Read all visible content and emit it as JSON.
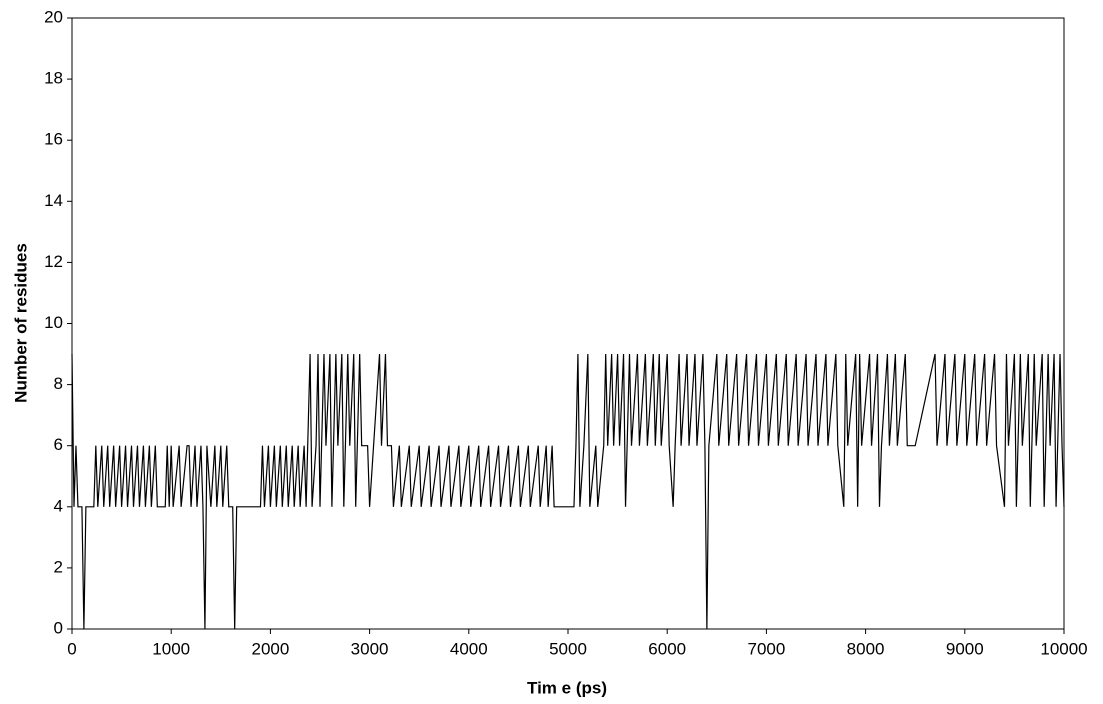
{
  "chart_data": {
    "type": "line",
    "x_label": "Tim e (ps)",
    "y_label": "Number of residues",
    "x": [
      0,
      20,
      40,
      60,
      100,
      120,
      140,
      220,
      240,
      260,
      300,
      320,
      360,
      380,
      420,
      440,
      480,
      500,
      540,
      560,
      600,
      620,
      660,
      680,
      720,
      740,
      780,
      800,
      840,
      860,
      940,
      960,
      980,
      1000,
      1020,
      1080,
      1100,
      1160,
      1180,
      1200,
      1240,
      1260,
      1300,
      1320,
      1340,
      1360,
      1400,
      1440,
      1460,
      1500,
      1520,
      1560,
      1580,
      1620,
      1640,
      1660,
      1900,
      1920,
      1940,
      1980,
      2000,
      2040,
      2060,
      2100,
      2120,
      2160,
      2180,
      2220,
      2240,
      2280,
      2300,
      2340,
      2360,
      2400,
      2420,
      2460,
      2480,
      2500,
      2540,
      2560,
      2600,
      2620,
      2660,
      2680,
      2720,
      2740,
      2780,
      2800,
      2840,
      2860,
      2900,
      2920,
      2980,
      3000,
      3040,
      3100,
      3120,
      3160,
      3180,
      3220,
      3240,
      3300,
      3320,
      3400,
      3420,
      3500,
      3520,
      3600,
      3620,
      3700,
      3720,
      3800,
      3820,
      3900,
      3920,
      4000,
      4020,
      4100,
      4120,
      4200,
      4220,
      4300,
      4320,
      4400,
      4420,
      4500,
      4520,
      4600,
      4620,
      4700,
      4720,
      4780,
      4800,
      4840,
      4860,
      5060,
      5080,
      5100,
      5120,
      5160,
      5200,
      5220,
      5280,
      5300,
      5360,
      5380,
      5400,
      5440,
      5460,
      5500,
      5520,
      5560,
      5580,
      5620,
      5640,
      5700,
      5720,
      5780,
      5800,
      5860,
      5880,
      5920,
      5940,
      6000,
      6020,
      6060,
      6080,
      6120,
      6140,
      6200,
      6220,
      6280,
      6300,
      6360,
      6380,
      6400,
      6420,
      6500,
      6520,
      6600,
      6620,
      6700,
      6720,
      6800,
      6820,
      6900,
      6920,
      7000,
      7020,
      7100,
      7120,
      7200,
      7220,
      7300,
      7320,
      7400,
      7420,
      7500,
      7520,
      7600,
      7620,
      7700,
      7720,
      7780,
      7800,
      7820,
      7900,
      7920,
      7940,
      7960,
      8040,
      8060,
      8120,
      8140,
      8160,
      8220,
      8240,
      8300,
      8320,
      8400,
      8420,
      8500,
      8700,
      8720,
      8800,
      8820,
      8900,
      8920,
      9000,
      9020,
      9100,
      9120,
      9200,
      9220,
      9300,
      9320,
      9400,
      9420,
      9440,
      9500,
      9520,
      9560,
      9580,
      9640,
      9660,
      9700,
      9720,
      9780,
      9800,
      9840,
      9860,
      9900,
      9920,
      9960,
      9980,
      10000
    ],
    "series": [
      {
        "color": "#000000",
        "values": [
          9,
          4,
          6,
          4,
          4,
          0,
          4,
          4,
          6,
          4,
          6,
          4,
          6,
          4,
          6,
          4,
          6,
          4,
          6,
          4,
          6,
          4,
          6,
          4,
          6,
          4,
          6,
          4,
          6,
          4,
          4,
          6,
          4,
          6,
          4,
          6,
          4,
          6,
          6,
          4,
          6,
          4,
          6,
          4,
          0,
          6,
          4,
          6,
          4,
          6,
          4,
          6,
          4,
          4,
          0,
          4,
          4,
          6,
          4,
          6,
          4,
          6,
          4,
          6,
          4,
          6,
          4,
          6,
          4,
          6,
          4,
          6,
          4,
          9,
          4,
          6,
          9,
          4,
          9,
          6,
          9,
          4,
          9,
          6,
          9,
          4,
          9,
          6,
          9,
          4,
          9,
          6,
          6,
          4,
          6,
          9,
          6,
          9,
          6,
          6,
          4,
          6,
          4,
          6,
          4,
          6,
          4,
          6,
          4,
          6,
          4,
          6,
          4,
          6,
          4,
          6,
          4,
          6,
          4,
          6,
          4,
          6,
          4,
          6,
          4,
          6,
          4,
          6,
          4,
          6,
          4,
          6,
          4,
          6,
          4,
          4,
          6,
          9,
          4,
          6,
          9,
          4,
          6,
          4,
          6,
          9,
          6,
          9,
          6,
          9,
          6,
          9,
          4,
          9,
          6,
          9,
          6,
          9,
          6,
          9,
          6,
          9,
          6,
          9,
          6,
          4,
          6,
          9,
          6,
          9,
          6,
          9,
          6,
          9,
          6,
          0,
          6,
          9,
          6,
          9,
          6,
          9,
          6,
          9,
          6,
          9,
          6,
          9,
          6,
          9,
          6,
          9,
          6,
          9,
          6,
          9,
          6,
          9,
          6,
          9,
          6,
          9,
          6,
          4,
          9,
          6,
          9,
          4,
          9,
          6,
          9,
          6,
          9,
          4,
          6,
          9,
          6,
          9,
          6,
          9,
          6,
          6,
          9,
          6,
          9,
          6,
          9,
          6,
          9,
          6,
          9,
          6,
          9,
          6,
          9,
          6,
          4,
          9,
          6,
          9,
          4,
          9,
          6,
          9,
          4,
          9,
          6,
          9,
          4,
          9,
          6,
          9,
          4,
          9,
          6,
          4
        ]
      }
    ],
    "xlim": [
      0,
      10000
    ],
    "xticks": [
      0,
      1000,
      2000,
      3000,
      4000,
      5000,
      6000,
      7000,
      8000,
      9000,
      10000
    ],
    "ylim": [
      0,
      20
    ],
    "yticks": [
      0,
      2,
      4,
      6,
      8,
      10,
      12,
      14,
      16,
      18,
      20
    ]
  }
}
